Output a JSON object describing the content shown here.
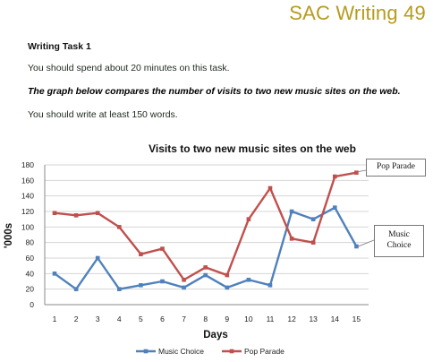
{
  "header": {
    "brand": "SAC Writing 49"
  },
  "task": {
    "title": "Writing Task 1",
    "time_instruction": "You should spend about 20 minutes on this task.",
    "prompt": "The graph below compares the number of visits to two new music sites on the web.",
    "word_instruction": "You should write at least 150 words."
  },
  "chart_data": {
    "type": "line",
    "title": "Visits to two new music sites on the web",
    "xlabel": "Days",
    "ylabel": "'000s",
    "x": [
      1,
      2,
      3,
      4,
      5,
      6,
      7,
      8,
      9,
      10,
      11,
      12,
      13,
      14,
      15
    ],
    "ylim": [
      0,
      180
    ],
    "yticks": [
      0,
      20,
      40,
      60,
      80,
      100,
      120,
      140,
      160,
      180
    ],
    "grid": true,
    "legend": "bottom",
    "series": [
      {
        "name": "Music Choice",
        "color": "#4f81bd",
        "values": [
          40,
          20,
          60,
          20,
          25,
          30,
          22,
          38,
          22,
          32,
          25,
          120,
          110,
          125,
          75
        ]
      },
      {
        "name": "Pop Parade",
        "color": "#c0504d",
        "values": [
          118,
          115,
          118,
          100,
          65,
          72,
          32,
          48,
          38,
          110,
          150,
          85,
          80,
          165,
          170
        ]
      }
    ],
    "annotations": {
      "pop_parade": "Pop Parade",
      "music_choice_line1": "Music",
      "music_choice_line2": "Choice"
    }
  }
}
